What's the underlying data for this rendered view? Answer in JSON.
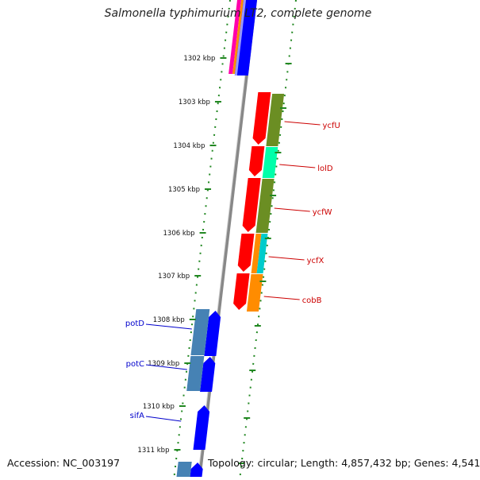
{
  "title": "Salmonella typhimurium LT2, complete genome",
  "footer": {
    "accession": "Accession: NC_003197",
    "topology": "Topology: circular; Length: 4,857,432 bp; Genes: 4,541"
  },
  "ruler": {
    "ticks": [
      "1302 kbp",
      "1303 kbp",
      "1304 kbp",
      "1305 kbp",
      "1306 kbp",
      "1307 kbp",
      "1308 kbp",
      "1309 kbp",
      "1310 kbp",
      "1311 kbp"
    ]
  },
  "genes": {
    "right": [
      {
        "label": "ycfU",
        "color": "#cc0000"
      },
      {
        "label": "lolD",
        "color": "#cc0000"
      },
      {
        "label": "ycfW",
        "color": "#cc0000"
      },
      {
        "label": "ycfX",
        "color": "#cc0000"
      },
      {
        "label": "cobB",
        "color": "#cc0000"
      }
    ],
    "left": [
      {
        "label": "potD",
        "color": "#0000cc"
      },
      {
        "label": "potC",
        "color": "#0000cc"
      },
      {
        "label": "sifA",
        "color": "#0000cc"
      }
    ]
  },
  "colors": {
    "backbone": "#888888",
    "dotted_guides": "#228822",
    "forward_cds": "#ff0000",
    "reverse_cds": "#0000ff",
    "olive": "#6b8e23",
    "aqua": "#00ffaa",
    "steelblue": "#4682b4",
    "orange": "#ff8c00",
    "cyan": "#00cccc",
    "magenta": "#ff00aa"
  }
}
